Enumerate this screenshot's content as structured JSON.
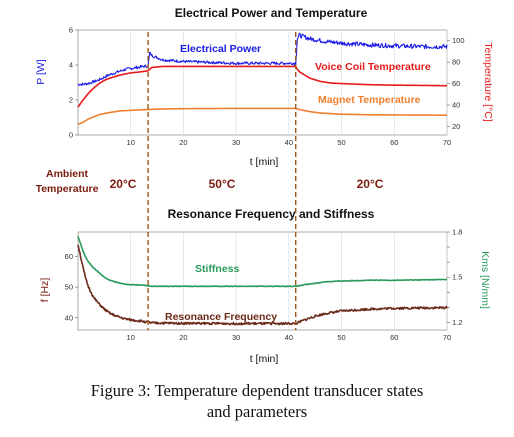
{
  "chart_data": [
    {
      "type": "line",
      "title": "Electrical Power and Temperature",
      "xlabel": "t [min]",
      "xlim": [
        0,
        70
      ],
      "xticks": [
        10,
        20,
        30,
        40,
        50,
        60,
        70
      ],
      "left_axis": {
        "label": "P [W]",
        "ylim": [
          0,
          6
        ],
        "ticks": [
          0,
          2,
          4,
          6
        ],
        "color": "#1a1ae6"
      },
      "right_axis": {
        "label": "Temperature [°C]",
        "ylim": [
          12,
          110
        ],
        "ticks": [
          20,
          40,
          60,
          80,
          100
        ],
        "color": "#e61a1a"
      },
      "grid": true,
      "series": [
        {
          "name": "Electrical Power",
          "axis": "left",
          "color": "#1a1ae6",
          "x": [
            0,
            0.5,
            1,
            2,
            3,
            4,
            5,
            6,
            7,
            8,
            9,
            10,
            11,
            12,
            13.3,
            13.6,
            14,
            16,
            20,
            25,
            30,
            35,
            41.3,
            41.6,
            42,
            44,
            47,
            50,
            55,
            60,
            65,
            70
          ],
          "y": [
            2.9,
            2.9,
            2.9,
            2.95,
            3.05,
            3.15,
            3.3,
            3.45,
            3.55,
            3.65,
            3.75,
            3.8,
            3.85,
            3.9,
            3.95,
            4.7,
            4.55,
            4.3,
            4.2,
            4.15,
            4.1,
            4.1,
            4.1,
            5.5,
            5.7,
            5.5,
            5.35,
            5.25,
            5.15,
            5.1,
            5.05,
            5.05
          ]
        },
        {
          "name": "Voice Coil Temperature",
          "axis": "right",
          "color": "#e61a1a",
          "x": [
            0,
            1,
            2,
            3,
            4,
            5,
            6,
            8,
            10,
            12,
            13.3,
            14,
            16,
            20,
            30,
            41.3,
            41.5,
            42,
            43,
            44,
            46,
            48,
            50,
            55,
            60,
            65,
            70
          ],
          "y": [
            38,
            45,
            51,
            56,
            60,
            63,
            65,
            68,
            70,
            71,
            72,
            75,
            76,
            76,
            76,
            76,
            74,
            71,
            68,
            65,
            62,
            60.5,
            60,
            59,
            58.5,
            58.3,
            58
          ]
        },
        {
          "name": "Magnet Temperature",
          "axis": "right",
          "color": "#f08030",
          "x": [
            0,
            1,
            2,
            3,
            4,
            6,
            8,
            10,
            12,
            13.3,
            16,
            20,
            30,
            41.3,
            42,
            44,
            46,
            50,
            55,
            60,
            70
          ],
          "y": [
            22,
            24,
            27,
            29,
            31,
            33,
            34.5,
            35,
            35.5,
            35.8,
            36.3,
            36.6,
            36.8,
            36.8,
            35.8,
            33.8,
            32.5,
            31.4,
            30.9,
            30.7,
            30.5
          ]
        }
      ],
      "annotations": [
        "Electrical Power",
        "Voice Coil Temperature",
        "Magnet Temperature"
      ]
    },
    {
      "type": "line",
      "title": "Resonance Frequency and Stiffness",
      "xlabel": "t [min]",
      "xlim": [
        0,
        70
      ],
      "xticks": [
        10,
        20,
        30,
        40,
        50,
        60,
        70
      ],
      "left_axis": {
        "label": "f [Hz]",
        "ylim": [
          36,
          68
        ],
        "ticks": [
          40,
          50,
          60
        ],
        "color": "#7a1c0f"
      },
      "right_axis": {
        "label": "Kms [N/mm]",
        "ylim": [
          1.15,
          1.8
        ],
        "ticks": [
          1.2,
          1.3,
          1.4,
          1.5,
          1.6,
          1.7,
          1.8
        ],
        "tick_labels_shown": [
          1.2,
          1.5,
          1.8
        ],
        "color": "#2a9a5a"
      },
      "grid": true,
      "series": [
        {
          "name": "Stiffness",
          "axis": "right",
          "color": "#2a9a5a",
          "x": [
            0,
            0.5,
            1,
            1.5,
            2,
            3,
            4,
            5,
            6,
            7,
            8,
            9,
            10,
            12,
            14,
            20,
            30,
            41.3,
            43,
            45,
            47,
            50,
            55,
            60,
            70
          ],
          "y": [
            1.77,
            1.72,
            1.67,
            1.63,
            1.6,
            1.56,
            1.53,
            1.5,
            1.48,
            1.47,
            1.46,
            1.455,
            1.45,
            1.45,
            1.44,
            1.44,
            1.44,
            1.44,
            1.45,
            1.46,
            1.47,
            1.475,
            1.48,
            1.48,
            1.485
          ]
        },
        {
          "name": "Resonance Frequency",
          "axis": "left",
          "color": "#6b2a1a",
          "x": [
            0,
            0.5,
            1,
            1.5,
            2,
            3,
            4,
            5,
            6,
            7,
            8,
            9,
            10,
            12,
            14,
            20,
            30,
            41.3,
            43,
            45,
            47,
            50,
            55,
            60,
            70
          ],
          "y": [
            64,
            60,
            56,
            52.5,
            50,
            46.5,
            44.5,
            42.8,
            41.5,
            40.7,
            40.1,
            39.6,
            39.3,
            38.9,
            38.3,
            38.2,
            38.1,
            38.1,
            39.3,
            40.5,
            41.4,
            42.2,
            42.8,
            43.1,
            43.3
          ]
        }
      ],
      "annotations": [
        "Stiffness",
        "Resonance Frequency"
      ]
    }
  ],
  "phase_markers_min": [
    13.3,
    41.3
  ],
  "ambient": {
    "label_line1": "Ambient",
    "label_line2": "Temperature",
    "phases": [
      "20°C",
      "50°C",
      "20°C"
    ]
  },
  "caption": {
    "line1": "Figure 3: Temperature dependent transducer states",
    "line2": "and parameters"
  },
  "colors": {
    "marker": "#9a5a1a",
    "grid": "#d9d9d9",
    "frame": "#999999"
  }
}
